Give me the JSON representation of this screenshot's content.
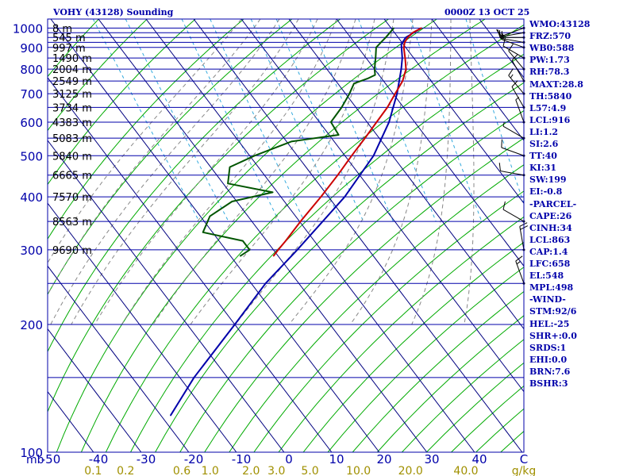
{
  "header": {
    "station_title": "VOHY (43128) Sounding",
    "valid_time": "0000Z 13 OCT 25"
  },
  "indices": [
    "WMO:43128",
    "FRZ:570",
    "WB0:588",
    "PW:1.73",
    "RH:78.3",
    "MAXT:28.8",
    "TH:5840",
    "L57:4.9",
    "LCL:916",
    "LI:1.2",
    "SI:2.6",
    "TT:40",
    "KI:31",
    "SW:199",
    "EI:-0.8",
    "-PARCEL-",
    "CAPE:26",
    "CINH:34",
    "LCL:863",
    "CAP:1.4",
    "LFC:658",
    "EL:548",
    "MPL:498",
    "-WIND-",
    "STM:92/6",
    "HEL:-25",
    "SHR+:0.0",
    "SRDS:1",
    "EHI:0.0",
    "BRN:7.6",
    "BSHR:3"
  ],
  "colors": {
    "isobar": "#0000aa",
    "isotherm": "#000080",
    "dry_adiabat": "#00aa00",
    "moist_adiabat": "#888888",
    "mixing_ratio": "#33aadd",
    "temperature": "#cc0000",
    "dewpoint": "#005500",
    "parcel": "#0000aa",
    "text": "#0000aa",
    "mixing_ratio_text": "#a09000"
  },
  "chart_data": {
    "type": "skew-t log-p sounding",
    "pressure_axis_label": "mb",
    "pressure_ticks": [
      {
        "p": 100,
        "label": "100"
      },
      {
        "p": 200,
        "label": "200"
      },
      {
        "p": 300,
        "label": "300"
      },
      {
        "p": 400,
        "label": "400"
      },
      {
        "p": 500,
        "label": "500"
      },
      {
        "p": 600,
        "label": "600"
      },
      {
        "p": 700,
        "label": "700"
      },
      {
        "p": 800,
        "label": "800"
      },
      {
        "p": 900,
        "label": "900"
      },
      {
        "p": 1000,
        "label": "1000"
      }
    ],
    "isobar_levels": [
      100,
      150,
      200,
      250,
      300,
      350,
      400,
      450,
      500,
      550,
      600,
      650,
      700,
      750,
      800,
      850,
      900,
      925,
      950,
      975,
      1000,
      1050
    ],
    "temperature_ticks": [
      -50,
      -40,
      -30,
      -20,
      -10,
      0,
      10,
      20,
      30,
      40
    ],
    "temperature_tick_labels": [
      "-50",
      "-40",
      "-30",
      "-20",
      "-10",
      "0",
      "10",
      "20",
      "30",
      "40"
    ],
    "temperature_unit_label": "C",
    "mixing_ratio_ticks": [
      0.1,
      0.2,
      0.6,
      1.0,
      2.0,
      3.0,
      5.0,
      10.0,
      20.0,
      40.0
    ],
    "mixing_ratio_tick_labels": [
      "0.1",
      "0.2",
      "0.6",
      "1.0",
      "2.0",
      "3.0",
      "5.0",
      "10.0",
      "20.0",
      "40.0"
    ],
    "mixing_ratio_unit_label": "g/kg",
    "height_labels": [
      {
        "p": 300,
        "label": "9690 m"
      },
      {
        "p": 350,
        "label": "8563 m"
      },
      {
        "p": 400,
        "label": "7570 m"
      },
      {
        "p": 450,
        "label": "6665 m"
      },
      {
        "p": 500,
        "label": "5840 m"
      },
      {
        "p": 550,
        "label": "5083 m"
      },
      {
        "p": 600,
        "label": "4383 m"
      },
      {
        "p": 650,
        "label": "3734 m"
      },
      {
        "p": 700,
        "label": "3125 m"
      },
      {
        "p": 750,
        "label": "2549 m"
      },
      {
        "p": 800,
        "label": "2004 m"
      },
      {
        "p": 850,
        "label": "1490 m"
      },
      {
        "p": 900,
        "label": "997 m"
      },
      {
        "p": 950,
        "label": "545 m"
      },
      {
        "p": 1000,
        "label": "8 m"
      }
    ],
    "temperature_profile": [
      {
        "p": 1000,
        "t": 26.4
      },
      {
        "p": 975,
        "t": 23.8
      },
      {
        "p": 950,
        "t": 22.0
      },
      {
        "p": 925,
        "t": 20.6
      },
      {
        "p": 900,
        "t": 19.6
      },
      {
        "p": 850,
        "t": 18.2
      },
      {
        "p": 800,
        "t": 16.6
      },
      {
        "p": 750,
        "t": 14.0
      },
      {
        "p": 700,
        "t": 10.4
      },
      {
        "p": 650,
        "t": 6.6
      },
      {
        "p": 600,
        "t": 2.0
      },
      {
        "p": 550,
        "t": -3.0
      },
      {
        "p": 500,
        "t": -8.6
      },
      {
        "p": 450,
        "t": -14.6
      },
      {
        "p": 400,
        "t": -21.6
      },
      {
        "p": 350,
        "t": -29.8
      },
      {
        "p": 315,
        "t": -36.0
      },
      {
        "p": 300,
        "t": -39.0
      },
      {
        "p": 290,
        "t": -41.0
      }
    ],
    "dewpoint_profile": [
      {
        "p": 1000,
        "t": 20.6
      },
      {
        "p": 950,
        "t": 17.4
      },
      {
        "p": 925,
        "t": 15.6
      },
      {
        "p": 900,
        "t": 13.8
      },
      {
        "p": 850,
        "t": 12.0
      },
      {
        "p": 800,
        "t": 10.0
      },
      {
        "p": 775,
        "t": 9.2
      },
      {
        "p": 760,
        "t": 7.0
      },
      {
        "p": 740,
        "t": 3.4
      },
      {
        "p": 700,
        "t": 0.8
      },
      {
        "p": 650,
        "t": -3.0
      },
      {
        "p": 600,
        "t": -7.6
      },
      {
        "p": 560,
        "t": -8.0
      },
      {
        "p": 540,
        "t": -19.0
      },
      {
        "p": 500,
        "t": -29.0
      },
      {
        "p": 470,
        "t": -36.0
      },
      {
        "p": 430,
        "t": -39.0
      },
      {
        "p": 410,
        "t": -31.0
      },
      {
        "p": 390,
        "t": -41.0
      },
      {
        "p": 360,
        "t": -48.0
      },
      {
        "p": 330,
        "t": -52.0
      },
      {
        "p": 315,
        "t": -45.0
      },
      {
        "p": 300,
        "t": -45.0
      },
      {
        "p": 290,
        "t": -48.0
      }
    ],
    "parcel_profile": [
      {
        "p": 1000,
        "t": 26.4
      },
      {
        "p": 950,
        "t": 21.6
      },
      {
        "p": 916,
        "t": 19.6
      },
      {
        "p": 850,
        "t": 17.6
      },
      {
        "p": 800,
        "t": 15.6
      },
      {
        "p": 700,
        "t": 10.8
      },
      {
        "p": 600,
        "t": 4.6
      },
      {
        "p": 500,
        "t": -4.0
      },
      {
        "p": 400,
        "t": -16.6
      },
      {
        "p": 300,
        "t": -35.0
      },
      {
        "p": 250,
        "t": -47.0
      },
      {
        "p": 200,
        "t": -60.0
      },
      {
        "p": 150,
        "t": -77.0
      },
      {
        "p": 122,
        "t": -88.0
      }
    ],
    "wind_barbs": [
      {
        "p": 1000,
        "dir": 250,
        "kt": 10
      },
      {
        "p": 975,
        "dir": 260,
        "kt": 15
      },
      {
        "p": 950,
        "dir": 270,
        "kt": 15
      },
      {
        "p": 925,
        "dir": 280,
        "kt": 15
      },
      {
        "p": 900,
        "dir": 290,
        "kt": 10
      },
      {
        "p": 850,
        "dir": 300,
        "kt": 10
      },
      {
        "p": 800,
        "dir": 320,
        "kt": 10
      },
      {
        "p": 750,
        "dir": 330,
        "kt": 10
      },
      {
        "p": 700,
        "dir": 320,
        "kt": 15
      },
      {
        "p": 650,
        "dir": 330,
        "kt": 10
      },
      {
        "p": 600,
        "dir": 340,
        "kt": 5
      },
      {
        "p": 550,
        "dir": 300,
        "kt": 5
      },
      {
        "p": 500,
        "dir": 290,
        "kt": 10
      },
      {
        "p": 450,
        "dir": 280,
        "kt": 10
      },
      {
        "p": 350,
        "dir": 300,
        "kt": 10
      },
      {
        "p": 300,
        "dir": 350,
        "kt": 20
      },
      {
        "p": 250,
        "dir": 340,
        "kt": 15
      }
    ]
  }
}
